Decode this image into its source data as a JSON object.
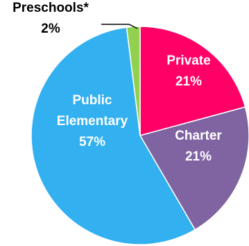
{
  "chart_data": {
    "type": "pie",
    "slices": [
      {
        "label_lines": [
          "Private"
        ],
        "pct_label": "21%",
        "value": 21,
        "color": "#ff0066",
        "label_color": "#ffffff"
      },
      {
        "label_lines": [
          "Charter"
        ],
        "pct_label": "21%",
        "value": 21,
        "color": "#8064a2",
        "label_color": "#ffffff"
      },
      {
        "label_lines": [
          "Public",
          "Elementary"
        ],
        "pct_label": "57%",
        "value": 57,
        "color": "#33b0f0",
        "label_color": "#ffffff"
      },
      {
        "label_lines": [
          "Preschools*"
        ],
        "pct_label": "2%",
        "value": 2,
        "color": "#92d050",
        "label_color": "#000000"
      }
    ]
  }
}
